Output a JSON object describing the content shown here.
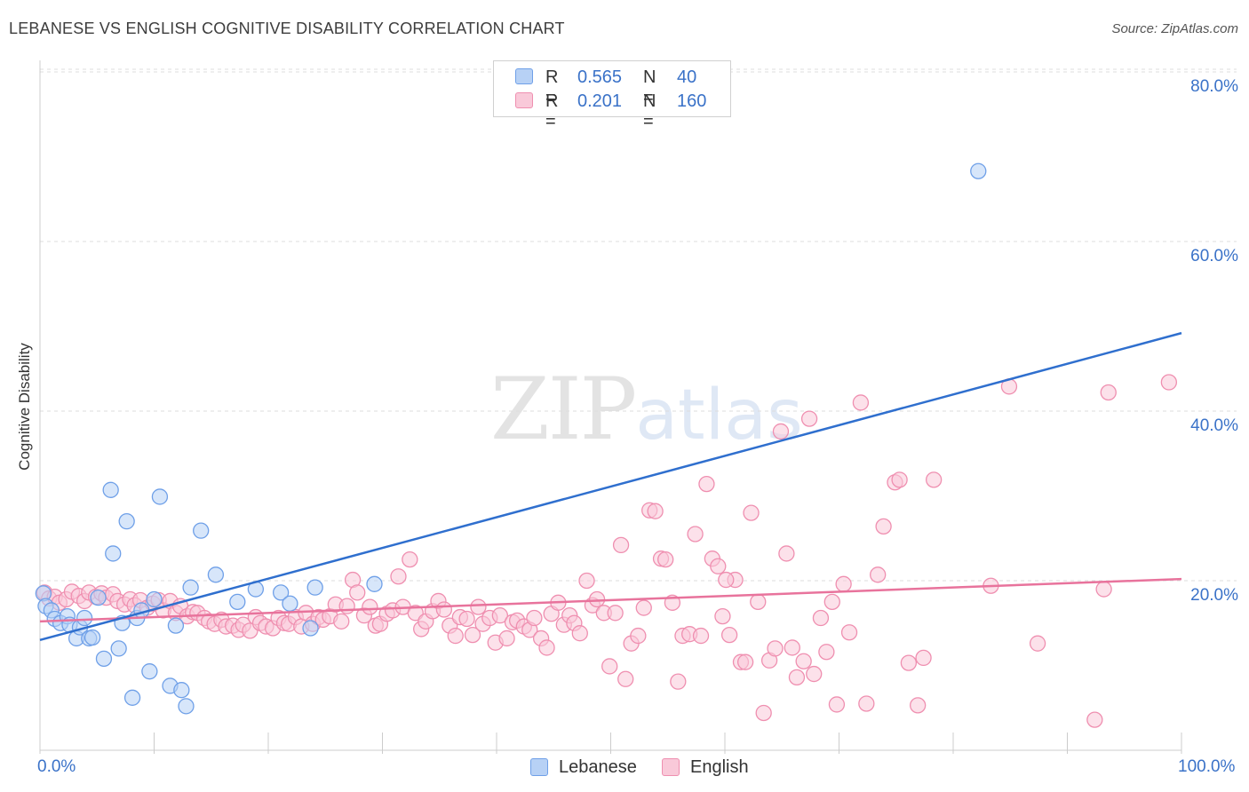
{
  "header": {
    "title": "LEBANESE VS ENGLISH COGNITIVE DISABILITY CORRELATION CHART",
    "source": "Source: ZipAtlas.com"
  },
  "watermark": {
    "zip": "ZIP",
    "atlas": "atlas"
  },
  "legend": {
    "r_label": "R =",
    "n_label": "N =",
    "rows": [
      {
        "r": "0.565",
        "n": "40",
        "color": "#6fa0e8",
        "fill": "#b7d1f5"
      },
      {
        "r": "0.201",
        "n": "160",
        "color": "#ef8fb0",
        "fill": "#f9c9d9"
      }
    ]
  },
  "bottom_legend": [
    {
      "label": "Lebanese",
      "color": "#6fa0e8",
      "fill": "#b7d1f5"
    },
    {
      "label": "English",
      "color": "#ef8fb0",
      "fill": "#f9c9d9"
    }
  ],
  "axes": {
    "ylabel": "Cognitive Disability",
    "y_ticks": [
      "80.0%",
      "60.0%",
      "40.0%",
      "20.0%"
    ],
    "x_ticks": [
      "0.0%",
      "100.0%"
    ]
  },
  "colors": {
    "lebanese_line": "#2f6fce",
    "english_line": "#e8739c",
    "lebanese_point_stroke": "#6fa0e8",
    "lebanese_point_fill": "#b7d1f5",
    "english_point_stroke": "#ef8fb0",
    "english_point_fill": "#f9c9d9",
    "grid": "#dddddd"
  },
  "chart_data": {
    "type": "scatter",
    "title": "LEBANESE VS ENGLISH COGNITIVE DISABILITY CORRELATION CHART",
    "xlabel": "",
    "ylabel": "Cognitive Disability",
    "xlim": [
      0,
      100
    ],
    "ylim": [
      0,
      80
    ],
    "grid": true,
    "legend_position": "top-center",
    "series": [
      {
        "name": "Lebanese",
        "r": 0.565,
        "n": 40,
        "trend": {
          "x": [
            0,
            100
          ],
          "y": [
            13.0,
            49.2
          ]
        },
        "points": [
          [
            0.3,
            18.5
          ],
          [
            0.5,
            17
          ],
          [
            1,
            16.5
          ],
          [
            1.3,
            15.5
          ],
          [
            1.8,
            15
          ],
          [
            2.4,
            15.8
          ],
          [
            2.6,
            14.8
          ],
          [
            3.2,
            13.2
          ],
          [
            3.5,
            14.5
          ],
          [
            3.9,
            15.6
          ],
          [
            4.3,
            13.2
          ],
          [
            4.6,
            13.3
          ],
          [
            5.1,
            18
          ],
          [
            5.6,
            10.8
          ],
          [
            6.2,
            30.7
          ],
          [
            6.4,
            23.2
          ],
          [
            6.9,
            12
          ],
          [
            7.2,
            15
          ],
          [
            7.6,
            27
          ],
          [
            8.1,
            6.2
          ],
          [
            8.5,
            15.6
          ],
          [
            8.9,
            16.5
          ],
          [
            9.6,
            9.3
          ],
          [
            10,
            17.8
          ],
          [
            10.5,
            29.9
          ],
          [
            11.4,
            7.6
          ],
          [
            11.9,
            14.7
          ],
          [
            12.4,
            7.1
          ],
          [
            12.8,
            5.2
          ],
          [
            13.2,
            19.2
          ],
          [
            14.1,
            25.9
          ],
          [
            15.4,
            20.7
          ],
          [
            17.3,
            17.5
          ],
          [
            18.9,
            19
          ],
          [
            21.1,
            18.6
          ],
          [
            21.9,
            17.3
          ],
          [
            23.7,
            14.4
          ],
          [
            24.1,
            19.2
          ],
          [
            29.3,
            19.6
          ],
          [
            82.2,
            68.3
          ]
        ]
      },
      {
        "name": "English",
        "r": 0.201,
        "n": 160,
        "trend": {
          "x": [
            0,
            100
          ],
          "y": [
            15.2,
            20.2
          ]
        },
        "points": [
          [
            0.4,
            18.6
          ],
          [
            0.8,
            17.9
          ],
          [
            1.3,
            18.1
          ],
          [
            1.7,
            17.4
          ],
          [
            2.3,
            17.8
          ],
          [
            2.8,
            18.7
          ],
          [
            3.4,
            18.2
          ],
          [
            3.9,
            17.6
          ],
          [
            4.3,
            18.6
          ],
          [
            4.9,
            18.1
          ],
          [
            5.4,
            18.5
          ],
          [
            5.8,
            18
          ],
          [
            6.4,
            18.4
          ],
          [
            6.8,
            17.6
          ],
          [
            7.4,
            17.2
          ],
          [
            7.9,
            17.8
          ],
          [
            8.3,
            17.1
          ],
          [
            8.8,
            17.7
          ],
          [
            9.4,
            16.8
          ],
          [
            9.9,
            17.3
          ],
          [
            10.4,
            17.7
          ],
          [
            10.8,
            16.5
          ],
          [
            11.4,
            17.6
          ],
          [
            11.9,
            16.2
          ],
          [
            12.3,
            17
          ],
          [
            12.9,
            15.8
          ],
          [
            13.4,
            16.3
          ],
          [
            13.8,
            16.2
          ],
          [
            14.4,
            15.6
          ],
          [
            14.8,
            15.2
          ],
          [
            15.3,
            14.9
          ],
          [
            15.9,
            15.4
          ],
          [
            16.3,
            14.6
          ],
          [
            16.9,
            14.7
          ],
          [
            17.4,
            14.2
          ],
          [
            17.8,
            14.8
          ],
          [
            18.4,
            14.1
          ],
          [
            18.9,
            15.7
          ],
          [
            19.3,
            15
          ],
          [
            19.8,
            14.6
          ],
          [
            20.4,
            14.4
          ],
          [
            20.9,
            15.6
          ],
          [
            21.4,
            15
          ],
          [
            21.8,
            14.9
          ],
          [
            22.4,
            15.7
          ],
          [
            22.9,
            14.6
          ],
          [
            23.3,
            16.2
          ],
          [
            23.9,
            14.9
          ],
          [
            24.4,
            15.7
          ],
          [
            24.8,
            15.4
          ],
          [
            25.4,
            15.8
          ],
          [
            25.9,
            17.2
          ],
          [
            26.4,
            15.2
          ],
          [
            26.9,
            17
          ],
          [
            27.4,
            20.1
          ],
          [
            27.8,
            18.6
          ],
          [
            28.4,
            15.9
          ],
          [
            28.9,
            16.9
          ],
          [
            29.4,
            14.7
          ],
          [
            29.8,
            14.9
          ],
          [
            30.4,
            16.1
          ],
          [
            30.9,
            16.5
          ],
          [
            31.4,
            20.5
          ],
          [
            31.8,
            16.9
          ],
          [
            32.4,
            22.5
          ],
          [
            32.9,
            16.2
          ],
          [
            33.4,
            14.3
          ],
          [
            33.8,
            15.2
          ],
          [
            34.4,
            16.4
          ],
          [
            34.9,
            17.6
          ],
          [
            35.4,
            16.6
          ],
          [
            35.9,
            14.7
          ],
          [
            36.4,
            13.5
          ],
          [
            36.8,
            15.7
          ],
          [
            37.4,
            15.5
          ],
          [
            37.9,
            13.6
          ],
          [
            38.4,
            16.9
          ],
          [
            38.8,
            14.9
          ],
          [
            39.4,
            15.6
          ],
          [
            39.9,
            12.7
          ],
          [
            40.3,
            15.9
          ],
          [
            40.9,
            13.2
          ],
          [
            41.4,
            15.1
          ],
          [
            41.8,
            15.3
          ],
          [
            42.4,
            14.6
          ],
          [
            42.9,
            14.2
          ],
          [
            43.3,
            15.6
          ],
          [
            43.9,
            13.2
          ],
          [
            44.4,
            12.1
          ],
          [
            44.8,
            16.1
          ],
          [
            45.4,
            17.4
          ],
          [
            45.9,
            14.8
          ],
          [
            46.4,
            15.9
          ],
          [
            46.8,
            15
          ],
          [
            47.3,
            13.8
          ],
          [
            47.9,
            20
          ],
          [
            48.4,
            17.1
          ],
          [
            48.8,
            17.8
          ],
          [
            49.4,
            16.2
          ],
          [
            49.9,
            9.9
          ],
          [
            50.4,
            16.2
          ],
          [
            50.9,
            24.2
          ],
          [
            51.3,
            8.4
          ],
          [
            51.8,
            12.6
          ],
          [
            52.4,
            13.5
          ],
          [
            52.9,
            16.8
          ],
          [
            53.4,
            28.3
          ],
          [
            53.9,
            28.2
          ],
          [
            54.4,
            22.6
          ],
          [
            54.8,
            22.5
          ],
          [
            55.4,
            17.4
          ],
          [
            55.9,
            8.1
          ],
          [
            56.3,
            13.5
          ],
          [
            56.9,
            13.7
          ],
          [
            57.4,
            25.5
          ],
          [
            57.9,
            13.5
          ],
          [
            58.4,
            31.4
          ],
          [
            58.9,
            22.6
          ],
          [
            59.4,
            21.7
          ],
          [
            59.8,
            15.8
          ],
          [
            60.4,
            13.6
          ],
          [
            60.9,
            20.1
          ],
          [
            61.4,
            10.4
          ],
          [
            61.8,
            10.4
          ],
          [
            62.3,
            28
          ],
          [
            62.9,
            17.5
          ],
          [
            63.4,
            4.4
          ],
          [
            63.9,
            10.6
          ],
          [
            64.4,
            12
          ],
          [
            64.9,
            37.6
          ],
          [
            65.4,
            23.2
          ],
          [
            65.9,
            12.1
          ],
          [
            66.3,
            8.6
          ],
          [
            66.9,
            10.5
          ],
          [
            67.4,
            39.1
          ],
          [
            67.8,
            9
          ],
          [
            68.4,
            15.6
          ],
          [
            68.9,
            11.6
          ],
          [
            69.4,
            17.5
          ],
          [
            69.8,
            5.4
          ],
          [
            70.4,
            19.6
          ],
          [
            70.9,
            13.9
          ],
          [
            71.9,
            41
          ],
          [
            72.4,
            5.5
          ],
          [
            73.4,
            20.7
          ],
          [
            73.9,
            26.4
          ],
          [
            74.9,
            31.6
          ],
          [
            75.3,
            31.9
          ],
          [
            76.1,
            10.3
          ],
          [
            76.9,
            5.3
          ],
          [
            77.4,
            10.9
          ],
          [
            78.3,
            31.9
          ],
          [
            83.3,
            19.4
          ],
          [
            84.9,
            42.9
          ],
          [
            87.4,
            12.6
          ],
          [
            92.4,
            3.6
          ],
          [
            93.2,
            19
          ],
          [
            93.6,
            42.2
          ],
          [
            98.9,
            43.4
          ],
          [
            60.1,
            20.1
          ]
        ]
      }
    ]
  }
}
